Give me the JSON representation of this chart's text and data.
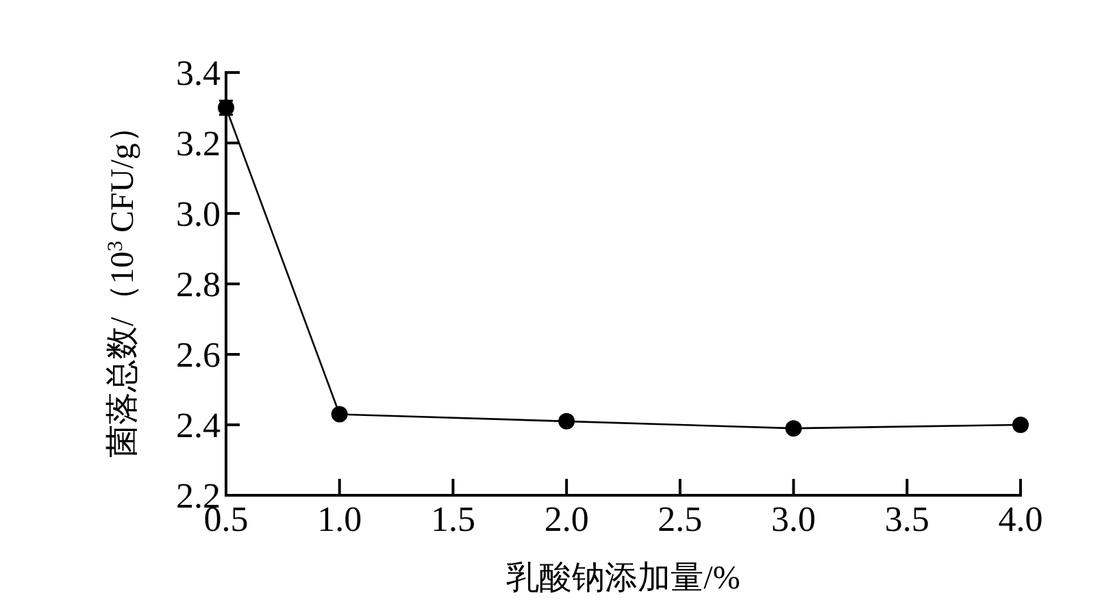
{
  "chart_data": {
    "type": "line",
    "xlabel": "乳酸钠添加量/%",
    "ylabel": "菌落总数/（10$^{3}$ CFU/g）",
    "x": [
      0.5,
      1,
      2,
      3,
      4
    ],
    "series": [
      {
        "color": "#000000",
        "values": [
          3.3,
          2.43,
          2.41,
          2.39,
          2.4
        ],
        "errors": [
          0.02,
          0.01,
          0.01,
          0.01,
          null
        ]
      }
    ],
    "xlim": [
      0.5,
      4
    ],
    "xticks": [
      0.5,
      {
        "value": 1,
        "label": "1.0"
      },
      1.5,
      {
        "value": 2,
        "label": "2.0"
      },
      2.5,
      {
        "value": 3,
        "label": "3.0"
      },
      3.5,
      {
        "value": 4,
        "label": "4.0"
      }
    ],
    "ylim": [
      2.2,
      3.4
    ],
    "yticks": [
      2.2,
      2.4,
      2.6,
      2.8,
      {
        "value": 3,
        "label": "3.0"
      },
      3.2,
      3.4
    ],
    "marker": "circle",
    "line_style": "solid",
    "grid": false
  }
}
